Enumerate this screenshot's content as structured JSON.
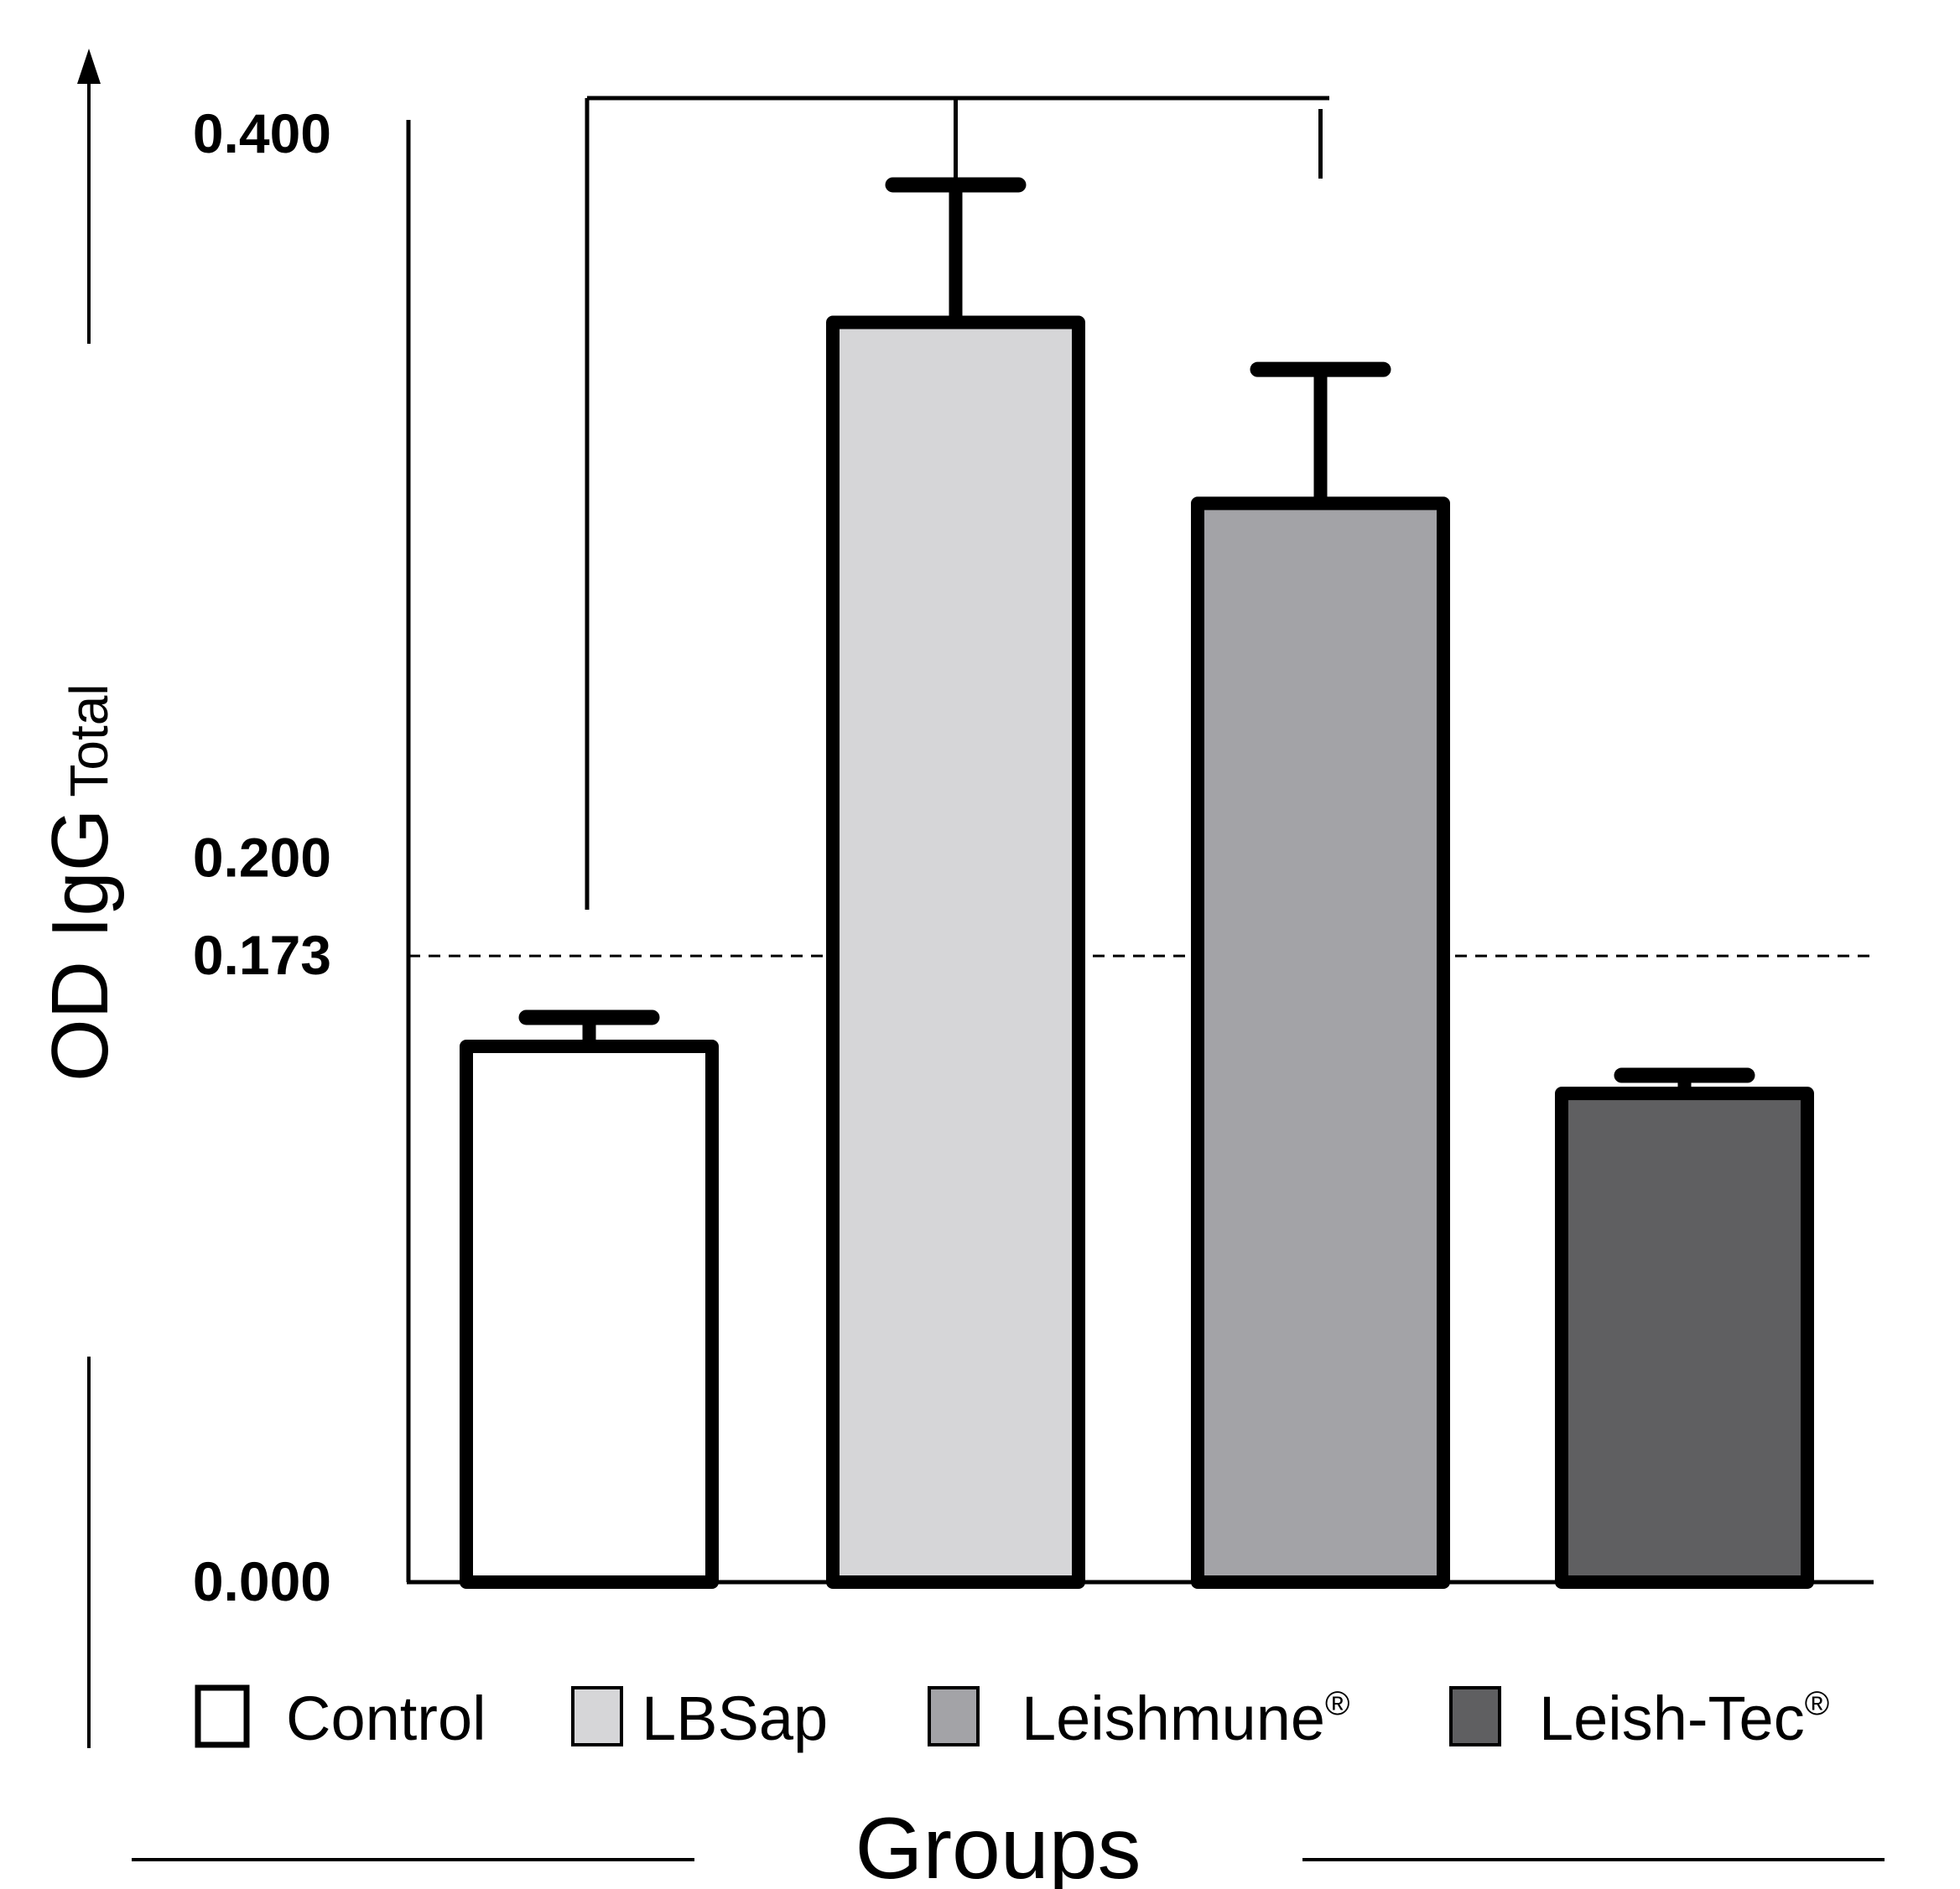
{
  "chart_data": {
    "type": "bar",
    "categories": [
      "Control",
      "LBSap",
      "Leishmune",
      "Leish-Tec"
    ],
    "values": [
      0.148,
      0.348,
      0.298,
      0.135
    ],
    "errors": [
      0.008,
      0.038,
      0.037,
      0.005
    ],
    "colors": [
      "#ffffff",
      "#d6d6d8",
      "#a3a3a7",
      "#5f5f61"
    ],
    "ylim": [
      0,
      0.4
    ],
    "yticks": [
      {
        "value": 0.4,
        "label": "0.400"
      },
      {
        "value": 0.2,
        "label": "0.200"
      },
      {
        "value": 0.173,
        "label": "0.173"
      },
      {
        "value": 0.0,
        "label": "0.000"
      }
    ],
    "cutoff": 0.173,
    "ylabel_main": "OD  IgG",
    "ylabel_sub": "Total",
    "xlabel": "Groups",
    "legend": [
      {
        "label": "Control",
        "sup": ""
      },
      {
        "label": "LBSap",
        "sup": ""
      },
      {
        "label": "Leishmune",
        "sup": "®"
      },
      {
        "label": "Leish-Tec",
        "sup": "®"
      }
    ],
    "significance": {
      "from": 0,
      "to": [
        1,
        2
      ]
    }
  }
}
